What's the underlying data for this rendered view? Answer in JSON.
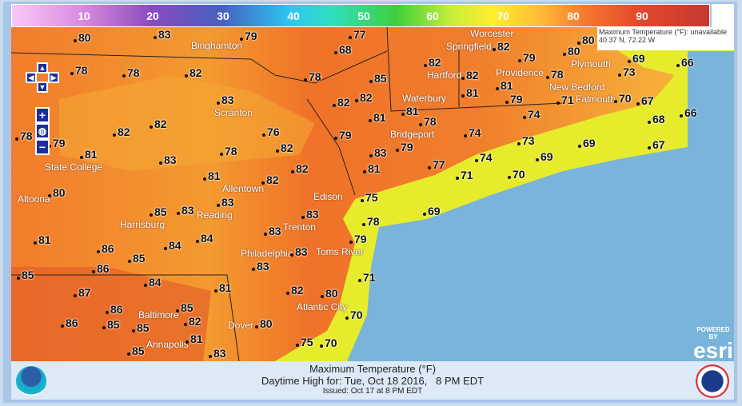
{
  "legend": {
    "ticks": [
      "10",
      "20",
      "30",
      "40",
      "50",
      "60",
      "70",
      "80",
      "90"
    ],
    "unit": "°F"
  },
  "info_box": {
    "line1": "Maximum Temperature (°F): unavailable",
    "line2": "40.37 N, 72.22 W"
  },
  "map": {
    "controls": [
      "pan-up",
      "pan-left",
      "pan-right",
      "pan-down",
      "zoom-in",
      "globe",
      "zoom-out"
    ],
    "temperatures": [
      "80",
      "83",
      "79",
      "77",
      "82",
      "80",
      "68",
      "66",
      "69",
      "78",
      "78",
      "82",
      "78",
      "85",
      "82",
      "82",
      "81",
      "79",
      "80",
      "78",
      "73",
      "83",
      "82",
      "82",
      "81",
      "81",
      "79",
      "81",
      "71",
      "70",
      "67",
      "74",
      "68",
      "66",
      "78",
      "79",
      "82",
      "82",
      "76",
      "82",
      "79",
      "78",
      "74",
      "73",
      "67",
      "81",
      "83",
      "78",
      "83",
      "79",
      "69",
      "69",
      "81",
      "82",
      "82",
      "81",
      "77",
      "74",
      "71",
      "70",
      "80",
      "85",
      "83",
      "83",
      "83",
      "75",
      "78",
      "69",
      "81",
      "86",
      "84",
      "85",
      "84",
      "83",
      "79",
      "83",
      "83",
      "85",
      "86",
      "84",
      "81",
      "82",
      "80",
      "71",
      "87",
      "86",
      "85",
      "86",
      "85",
      "85",
      "82",
      "80",
      "70",
      "81",
      "85",
      "75",
      "70",
      "83"
    ],
    "cities": [
      "Binghamton",
      "Worcester",
      "Springfield",
      "Plymouth",
      "Providence",
      "Hartford",
      "New Bedford",
      "Falmouth",
      "Waterbury",
      "Scranton",
      "Bridgeport",
      "State College",
      "Altoona",
      "Allentown",
      "Edison",
      "Reading",
      "Harrisburg",
      "Trenton",
      "Philadelphia",
      "Toms River",
      "Baltimore",
      "Atlantic City",
      "Dover",
      "Annapolis"
    ],
    "colors": {
      "ocean": "#7ab4da",
      "hot": "#f07a2a",
      "warm": "#f4a030",
      "coast": "#e8ee2a"
    },
    "attribution": {
      "powered": "POWERED BY",
      "brand": "esri"
    }
  },
  "footer": {
    "title": "Maximum Temperature (°F)",
    "subtitle": "Daytime High for: Tue, Oct 18 2016,   8 PM EDT",
    "issued": "Issued: Oct 17 at 8 PM EDT",
    "left_logo": "NOAA",
    "right_logo": "National Weather Service"
  }
}
